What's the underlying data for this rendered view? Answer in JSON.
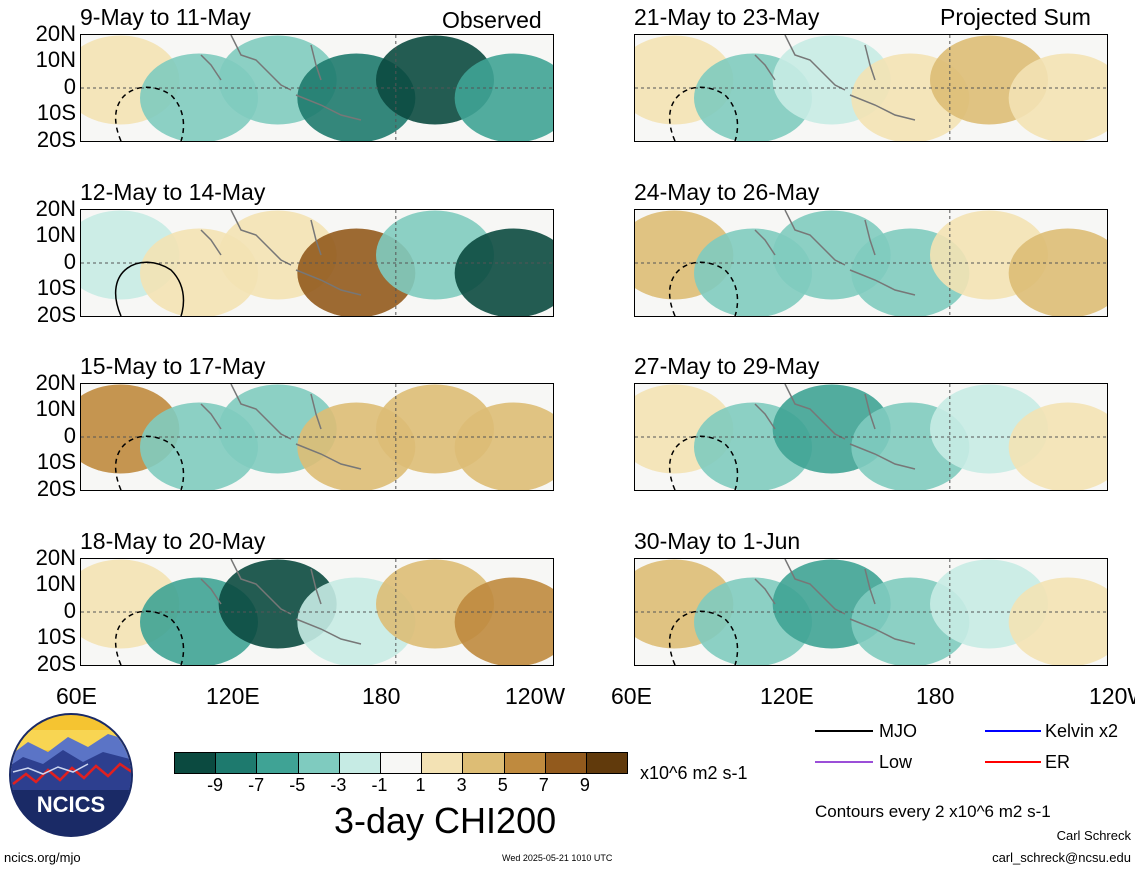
{
  "header": {
    "left_label": "Observed",
    "right_label": "Projected Sum"
  },
  "panels": [
    {
      "title": "9-May to 11-May",
      "fill_ramp": [
        1,
        -2,
        -3,
        -7,
        -9,
        -5
      ],
      "col": 0,
      "row": 0
    },
    {
      "title": "12-May to 14-May",
      "fill_ramp": [
        -1,
        1,
        2,
        7,
        -3,
        -9
      ],
      "col": 0,
      "row": 1
    },
    {
      "title": "15-May to 17-May",
      "fill_ramp": [
        5,
        -2,
        -3,
        3,
        4,
        3
      ],
      "col": 0,
      "row": 2
    },
    {
      "title": "18-May to 20-May",
      "fill_ramp": [
        2,
        -5,
        -9,
        -1,
        3,
        6
      ],
      "col": 0,
      "row": 3
    },
    {
      "title": "21-May to 23-May",
      "fill_ramp": [
        2,
        -3,
        -1,
        1,
        3,
        2
      ],
      "col": 1,
      "row": 0
    },
    {
      "title": "24-May to 26-May",
      "fill_ramp": [
        3,
        -2,
        -3,
        -2,
        1,
        3
      ],
      "col": 1,
      "row": 1
    },
    {
      "title": "27-May to 29-May",
      "fill_ramp": [
        1,
        -3,
        -5,
        -2,
        -1,
        2
      ],
      "col": 1,
      "row": 2
    },
    {
      "title": "30-May to 1-Jun",
      "fill_ramp": [
        3,
        -3,
        -5,
        -2,
        -1,
        1
      ],
      "col": 1,
      "row": 3
    }
  ],
  "lat_labels": [
    "20N",
    "10N",
    "0",
    "10S",
    "20S"
  ],
  "lon_labels": [
    "60E",
    "120E",
    "180",
    "120W"
  ],
  "colorbar": {
    "colors": [
      "#0b4a40",
      "#1e7a6e",
      "#3fa395",
      "#7fcbbf",
      "#c6ebe4",
      "#f7f7f5",
      "#f3e2b4",
      "#ddbd75",
      "#bf8a3e",
      "#925a1d",
      "#613a0c"
    ],
    "tick_labels": [
      "-9",
      "-7",
      "-5",
      "-3",
      "-1",
      "1",
      "3",
      "5",
      "7",
      "9"
    ],
    "units": "x10^6 m2 s-1",
    "title": "3-day CHI200"
  },
  "legend": [
    {
      "label": "MJO",
      "color": "#000000"
    },
    {
      "label": "Kelvin x2",
      "color": "#0000ff"
    },
    {
      "label": "Low",
      "color": "#9b4fd8"
    },
    {
      "label": "ER",
      "color": "#ff0000"
    }
  ],
  "contour_note": "Contours every 2 x10^6 m2 s-1",
  "credits": {
    "author": "Carl Schreck",
    "email": "carl_schreck@ncsu.edu",
    "site": "ncics.org/mjo",
    "timestamp": "Wed 2025-05-21 1010 UTC"
  },
  "logo": {
    "text": "NCICS",
    "colors": {
      "ring": "#1a2a66",
      "sky": "#f5c431",
      "mountain": "#2d3f8f",
      "line": "#e02020"
    }
  }
}
